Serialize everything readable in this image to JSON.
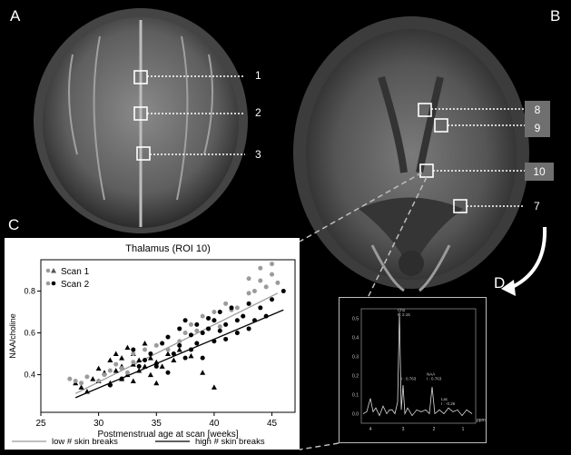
{
  "panel_labels": {
    "a": "A",
    "b": "B",
    "c": "C",
    "d": "D"
  },
  "panel_a_rois": [
    "1",
    "2",
    "3"
  ],
  "panel_b_rois": [
    "8",
    "9",
    "10",
    "7"
  ],
  "chart_data": [
    {
      "type": "scatter",
      "title": "Thalamus (ROI 10)",
      "xlabel": "Postmenstrual age at scan [weeks]",
      "ylabel": "NAA/choline",
      "xlim": [
        25,
        47
      ],
      "ylim": [
        0.22,
        0.95
      ],
      "xticks": [
        25,
        30,
        35,
        40,
        45
      ],
      "yticks": [
        0.4,
        0.6,
        0.8
      ],
      "legend_position": "top-left",
      "series": [
        {
          "name": "Scan 1",
          "marker": "triangle",
          "color": "#000000",
          "x": [
            28,
            28.5,
            29,
            29.5,
            30,
            30,
            30.5,
            31,
            31,
            31.5,
            31.5,
            32,
            32,
            32,
            32.5,
            32.5,
            33,
            33,
            33,
            33.5,
            33.5,
            34,
            34,
            34.5,
            34.5,
            35,
            35,
            35.5,
            36,
            36.5,
            37,
            38,
            39,
            40
          ],
          "y": [
            0.36,
            0.34,
            0.32,
            0.38,
            0.37,
            0.43,
            0.41,
            0.36,
            0.47,
            0.42,
            0.5,
            0.44,
            0.38,
            0.48,
            0.4,
            0.53,
            0.45,
            0.37,
            0.5,
            0.42,
            0.47,
            0.44,
            0.55,
            0.4,
            0.48,
            0.46,
            0.36,
            0.44,
            0.5,
            0.47,
            0.52,
            0.49,
            0.41,
            0.34
          ]
        },
        {
          "name": "Scan 2",
          "marker": "circle",
          "color": "#9b9b9b",
          "x": [
            27.5,
            28,
            28.5,
            29,
            30,
            30.5,
            31,
            31.5,
            32,
            32.5,
            33,
            33,
            34,
            35,
            36,
            37,
            37.5,
            38,
            38.5,
            39,
            39.5,
            40,
            40,
            40.5,
            41,
            41.5,
            42,
            42.5,
            43,
            43,
            43.5,
            44,
            44,
            44.5,
            45,
            45,
            45.5
          ],
          "y": [
            0.38,
            0.37,
            0.36,
            0.39,
            0.37,
            0.4,
            0.42,
            0.45,
            0.43,
            0.41,
            0.46,
            0.5,
            0.52,
            0.54,
            0.52,
            0.56,
            0.6,
            0.64,
            0.61,
            0.68,
            0.62,
            0.7,
            0.66,
            0.63,
            0.74,
            0.71,
            0.72,
            0.68,
            0.79,
            0.86,
            0.8,
            0.85,
            0.91,
            0.82,
            0.93,
            0.88,
            0.84
          ]
        },
        {
          "name": "",
          "marker": "circle",
          "color": "#000000",
          "x": [
            31,
            32,
            33,
            33.5,
            34,
            34.5,
            35,
            35.5,
            36,
            36,
            36.5,
            37,
            37,
            37.5,
            37.5,
            38,
            38,
            38.5,
            38.5,
            39,
            39,
            39.5,
            39.5,
            40,
            40,
            40.5,
            40.5,
            41,
            41,
            41.5,
            42,
            42,
            42.5,
            43,
            43,
            43.5,
            44,
            44.5,
            45,
            46
          ],
          "y": [
            0.35,
            0.38,
            0.52,
            0.44,
            0.47,
            0.5,
            0.44,
            0.55,
            0.58,
            0.41,
            0.5,
            0.62,
            0.54,
            0.48,
            0.66,
            0.59,
            0.52,
            0.64,
            0.55,
            0.6,
            0.48,
            0.62,
            0.67,
            0.66,
            0.56,
            0.61,
            0.7,
            0.64,
            0.57,
            0.72,
            0.66,
            0.6,
            0.68,
            0.74,
            0.62,
            0.66,
            0.72,
            0.68,
            0.76,
            0.8
          ]
        }
      ],
      "fit_lines": [
        {
          "name": "low # skin breaks",
          "color": "#9b9b9b",
          "x": [
            28,
            45.5
          ],
          "y": [
            0.31,
            0.79
          ]
        },
        {
          "name": "high # skin breaks",
          "color": "#000000",
          "x": [
            28,
            46
          ],
          "y": [
            0.29,
            0.71
          ]
        }
      ]
    },
    {
      "type": "line",
      "xlabel": "ppm",
      "xticks": [
        "4",
        "3",
        "2",
        "1"
      ],
      "yticks": [
        "0.0",
        "0.1",
        "0.2",
        "0.3",
        "0.4",
        "0.5"
      ],
      "ylim": [
        -0.05,
        0.55
      ],
      "annotations": [
        {
          "label": "Cho",
          "value": "I : 2.15"
        },
        {
          "label": "",
          "value": "I : 0.763"
        },
        {
          "label": "NAA",
          "value": "I : 0.763"
        },
        {
          "label": "Lac",
          "value": "I : -0.26"
        }
      ]
    }
  ]
}
